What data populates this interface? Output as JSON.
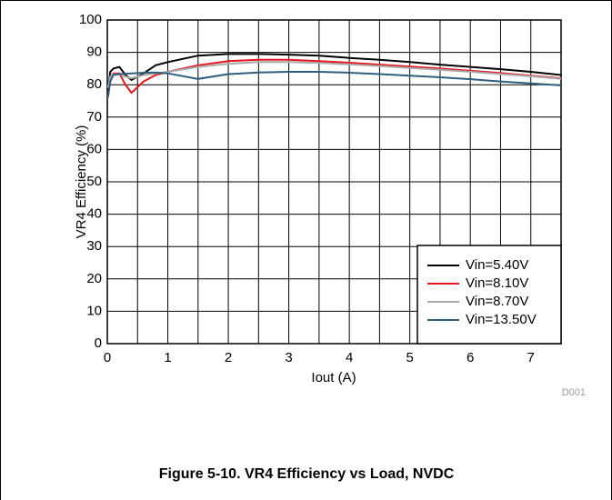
{
  "chart_data": {
    "type": "line",
    "x_label": "Iout (A)",
    "y_label": "VR4 Efficiency (%)",
    "figure_id": "D001",
    "caption": "Figure 5-10. VR4 Efficiency vs Load, NVDC",
    "xlim": [
      0,
      7.5
    ],
    "ylim": [
      0,
      100
    ],
    "xticks": [
      0,
      1,
      2,
      3,
      4,
      5,
      6,
      7
    ],
    "x_minor_ticks": [
      0.5,
      1.5,
      2.5,
      3.5,
      4.5,
      5.5,
      6.5,
      7.5
    ],
    "yticks": [
      0,
      10,
      20,
      30,
      40,
      50,
      60,
      70,
      80,
      90,
      100
    ],
    "grid": true,
    "legend": "lower right",
    "x": [
      0.01,
      0.05,
      0.1,
      0.2,
      0.3,
      0.4,
      0.6,
      0.8,
      1,
      1.5,
      2,
      2.5,
      3,
      3.5,
      4,
      4.5,
      5,
      5.5,
      6,
      6.5,
      7,
      7.5
    ],
    "series": [
      {
        "name": "Vin=5.40V",
        "color": "#000000",
        "values": [
          78,
          84,
          85,
          85.5,
          83,
          81.5,
          83.5,
          86,
          87,
          89,
          89.5,
          89.5,
          89.3,
          89,
          88.3,
          87.7,
          87,
          86.2,
          85.5,
          84.8,
          84,
          83
        ]
      },
      {
        "name": "Vin=8.10V",
        "color": "#e8141e",
        "values": [
          79,
          82,
          83.5,
          83.5,
          80,
          77.5,
          81,
          83,
          84,
          86,
          87.3,
          87.7,
          87.7,
          87.3,
          86.8,
          86.2,
          85.6,
          85,
          84.3,
          83.6,
          82.8,
          82
        ]
      },
      {
        "name": "Vin=8.70V",
        "color": "#aaaaaa",
        "values": [
          79,
          82.5,
          83.2,
          83.3,
          82.5,
          82,
          83,
          83.5,
          84,
          85.5,
          86.5,
          87,
          87,
          86.7,
          86.3,
          85.8,
          85.2,
          84.6,
          84,
          83.3,
          82.6,
          81.8
        ]
      },
      {
        "name": "Vin=13.50V",
        "color": "#2d6080",
        "values": [
          76,
          81,
          83,
          83.3,
          83.4,
          83.5,
          83.7,
          83.8,
          83.5,
          81.8,
          83.3,
          83.8,
          84,
          84,
          83.7,
          83.3,
          82.8,
          82.3,
          81.7,
          81,
          80.4,
          79.8
        ]
      }
    ]
  }
}
